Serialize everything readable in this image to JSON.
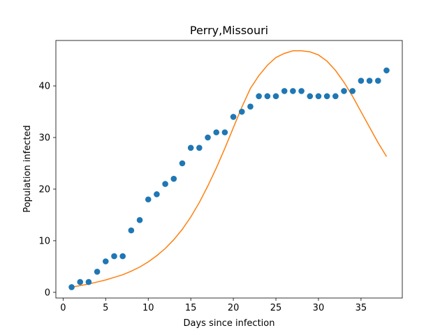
{
  "chart_data": {
    "type": "scatter",
    "title": "Perry,Missouri",
    "xlabel": "Days since infection",
    "ylabel": "Population infected",
    "xlim": [
      -0.85,
      39.85
    ],
    "ylim": [
      -1.1,
      48.8
    ],
    "xticks": [
      0,
      5,
      10,
      15,
      20,
      25,
      30,
      35
    ],
    "yticks": [
      0,
      10,
      20,
      30,
      40
    ],
    "grid": false,
    "legend": "none",
    "series": [
      {
        "kind": "scatter",
        "color": "#1f77b4",
        "x": [
          1,
          2,
          3,
          4,
          5,
          6,
          7,
          8,
          9,
          10,
          11,
          12,
          13,
          14,
          15,
          16,
          17,
          18,
          19,
          20,
          21,
          22,
          23,
          24,
          25,
          26,
          27,
          28,
          29,
          30,
          31,
          32,
          33,
          34,
          35,
          36,
          37,
          38
        ],
        "y": [
          1,
          2,
          2,
          4,
          6,
          7,
          7,
          12,
          14,
          18,
          19,
          21,
          22,
          25,
          28,
          28,
          30,
          31,
          31,
          34,
          35,
          36,
          38,
          38,
          38,
          39,
          39,
          39,
          38,
          38,
          38,
          38,
          39,
          39,
          41,
          41,
          41,
          43
        ]
      },
      {
        "kind": "line",
        "color": "#ff7f0e",
        "x": [
          1,
          2,
          3,
          4,
          5,
          6,
          7,
          8,
          9,
          10,
          11,
          12,
          13,
          14,
          15,
          16,
          17,
          18,
          19,
          20,
          21,
          22,
          23,
          24,
          25,
          26,
          27,
          28,
          29,
          30,
          31,
          32,
          33,
          34,
          35,
          36,
          37,
          38
        ],
        "y": [
          1.0,
          1.3,
          1.6,
          2.0,
          2.4,
          2.9,
          3.4,
          4.1,
          4.9,
          5.9,
          7.1,
          8.5,
          10.2,
          12.2,
          14.6,
          17.4,
          20.6,
          24.1,
          27.9,
          31.9,
          35.9,
          39.5,
          42.0,
          44.0,
          45.5,
          46.3,
          46.8,
          46.8,
          46.6,
          46.0,
          44.8,
          43.0,
          40.7,
          38.0,
          35.0,
          32.0,
          29.0,
          26.3
        ]
      }
    ]
  }
}
